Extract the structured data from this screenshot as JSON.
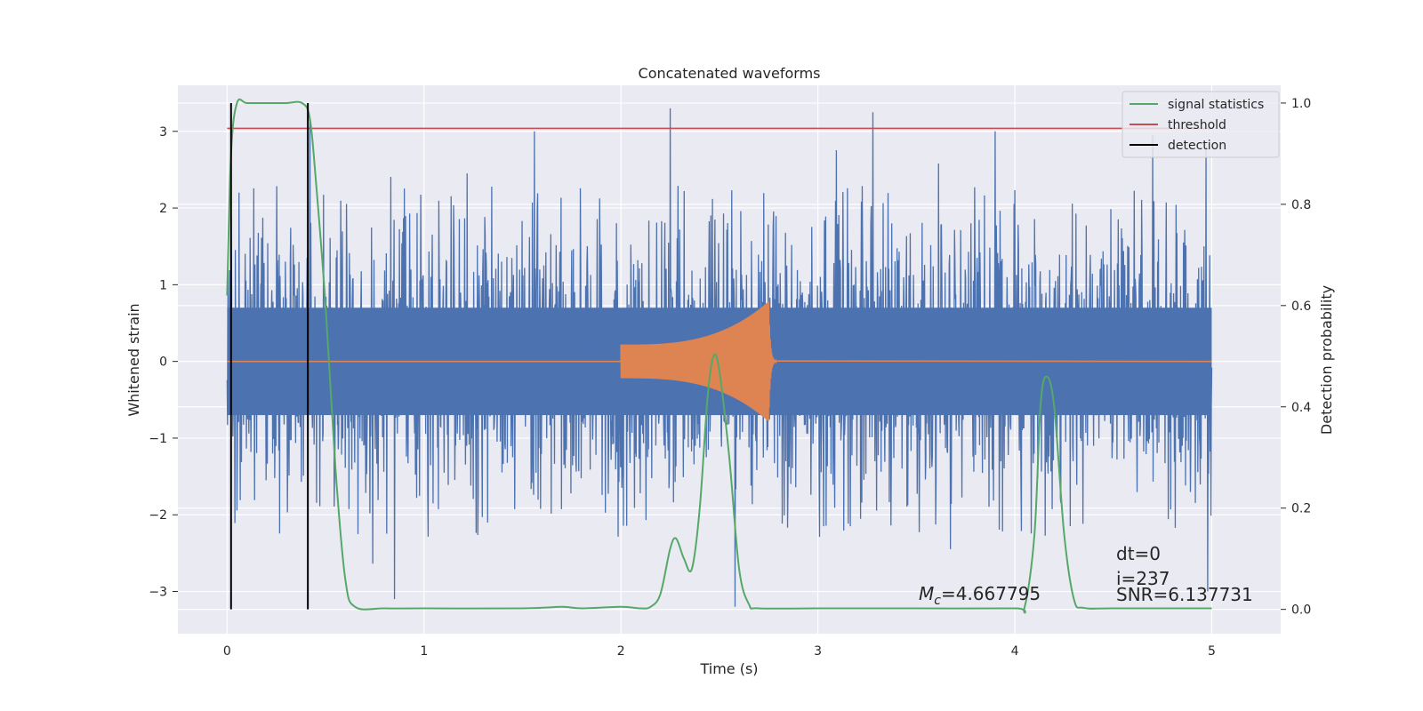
{
  "chart_data": {
    "type": "line",
    "title": "Concatenated waveforms",
    "xlabel": "Time (s)",
    "ylabel": "Whitened strain",
    "ylabel_right": "Detection probability",
    "xlim": [
      -0.25,
      5.35
    ],
    "ylim": [
      -3.55,
      3.6
    ],
    "ylim_right": [
      -0.048,
      1.035
    ],
    "xticks": [
      0,
      1,
      2,
      3,
      4,
      5
    ],
    "yticks": [
      -3,
      -2,
      -1,
      0,
      1,
      2,
      3
    ],
    "yticks_right": [
      0.0,
      0.2,
      0.4,
      0.6,
      0.8,
      1.0
    ],
    "grid": true,
    "legend_position": "top-right",
    "colors": {
      "strain": "#4c72b0",
      "injection": "#dd8452",
      "signal_statistics": "#55a868",
      "threshold": "#c44e52",
      "detection": "#000000",
      "plot_bg": "#eaeaf2",
      "grid": "#ffffff"
    },
    "legend": [
      {
        "label": "signal statistics",
        "color": "#55a868"
      },
      {
        "label": "threshold",
        "color": "#c44e52"
      },
      {
        "label": "detection",
        "color": "#000000"
      }
    ],
    "series": [
      {
        "name": "signal statistics",
        "axis": "right",
        "x": [
          0.0,
          0.02,
          0.05,
          0.1,
          0.2,
          0.3,
          0.38,
          0.42,
          0.45,
          0.5,
          0.55,
          0.6,
          0.65,
          0.8,
          1.0,
          1.5,
          1.7,
          1.8,
          2.0,
          2.1,
          2.15,
          2.2,
          2.25,
          2.28,
          2.32,
          2.36,
          2.4,
          2.44,
          2.47,
          2.5,
          2.55,
          2.6,
          2.65,
          2.7,
          3.0,
          3.5,
          4.0,
          4.05,
          4.1,
          4.13,
          4.16,
          4.2,
          4.25,
          4.3,
          4.35,
          4.5,
          5.0
        ],
        "y": [
          0.62,
          0.9,
          1.0,
          1.0,
          1.0,
          1.0,
          1.0,
          0.97,
          0.85,
          0.6,
          0.28,
          0.06,
          0.005,
          0.002,
          0.002,
          0.002,
          0.005,
          0.002,
          0.005,
          0.002,
          0.005,
          0.03,
          0.12,
          0.14,
          0.1,
          0.08,
          0.2,
          0.42,
          0.5,
          0.47,
          0.3,
          0.08,
          0.01,
          0.002,
          0.002,
          0.002,
          0.002,
          0.005,
          0.15,
          0.4,
          0.46,
          0.4,
          0.15,
          0.02,
          0.003,
          0.002,
          0.002
        ]
      },
      {
        "name": "threshold",
        "axis": "right",
        "x": [
          0.0,
          5.0
        ],
        "y": [
          0.95,
          0.95
        ]
      },
      {
        "name": "detection",
        "axis": "right",
        "x": [
          0.02,
          0.41
        ],
        "y_range": [
          0.0,
          1.0
        ]
      },
      {
        "axis": "left",
        "x_range": [
          0.0,
          5.0
        ],
        "envelope": 0.7,
        "peaks": [
          {
            "x": 0.02,
            "y": 1.9
          },
          {
            "x": 0.06,
            "y": 2.2
          },
          {
            "x": 0.42,
            "y": 3.15
          },
          {
            "x": 0.85,
            "y": -3.1
          },
          {
            "x": 1.56,
            "y": 3.0
          },
          {
            "x": 2.25,
            "y": 3.3
          },
          {
            "x": 2.58,
            "y": -3.2
          },
          {
            "x": 3.28,
            "y": 3.25
          },
          {
            "x": 3.9,
            "y": 3.0
          },
          {
            "x": 4.7,
            "y": 2.95
          },
          {
            "x": 4.97,
            "y": 2.8
          },
          {
            "x": 4.98,
            "y": -3.0
          }
        ]
      },
      {
        "axis": "left",
        "x_range": [
          2.0,
          2.75
        ],
        "amplitude_start": 0.22,
        "amplitude_end": 0.78,
        "y_elsewhere": 0
      }
    ],
    "annotations": [
      {
        "text": "$M_c$=4.667795",
        "x": 3.5,
        "y": -3.05
      },
      {
        "text": "dt=0",
        "x": 4.5,
        "y": -2.6
      },
      {
        "text": "i=237",
        "x": 4.5,
        "y": -2.9
      },
      {
        "text": "SNR=6.137731",
        "x": 4.5,
        "y": -3.1
      }
    ]
  },
  "annotations_text": {
    "mc_symbol": "M",
    "mc_subscript": "c",
    "mc_value": "=4.667795",
    "dt": "dt=0",
    "i": "i=237",
    "snr": "SNR=6.137731"
  }
}
